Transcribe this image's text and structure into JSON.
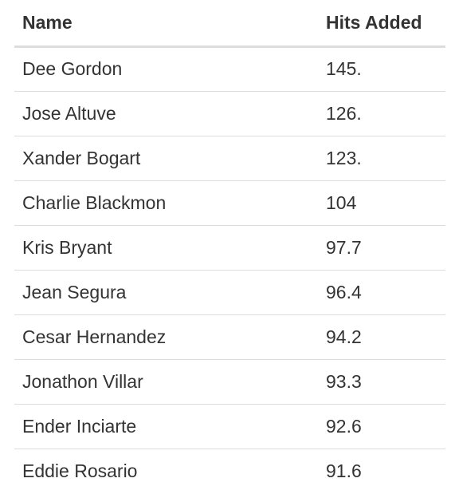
{
  "table": {
    "headers": [
      "Name",
      "Hits Added"
    ],
    "rows": [
      [
        "Dee Gordon",
        "145."
      ],
      [
        "Jose Altuve",
        "126."
      ],
      [
        "Xander Bogart",
        "123."
      ],
      [
        "Charlie Blackmon",
        "104"
      ],
      [
        "Kris Bryant",
        "97.7"
      ],
      [
        "Jean Segura",
        "96.4"
      ],
      [
        "Cesar Hernandez",
        "94.2"
      ],
      [
        "Jonathon Villar",
        "93.3"
      ],
      [
        "Ender Inciarte",
        "92.6"
      ],
      [
        "Eddie Rosario",
        "91.6"
      ]
    ]
  },
  "colors": {
    "text": "#333333",
    "rule": "#dddddd",
    "background": "#ffffff"
  }
}
